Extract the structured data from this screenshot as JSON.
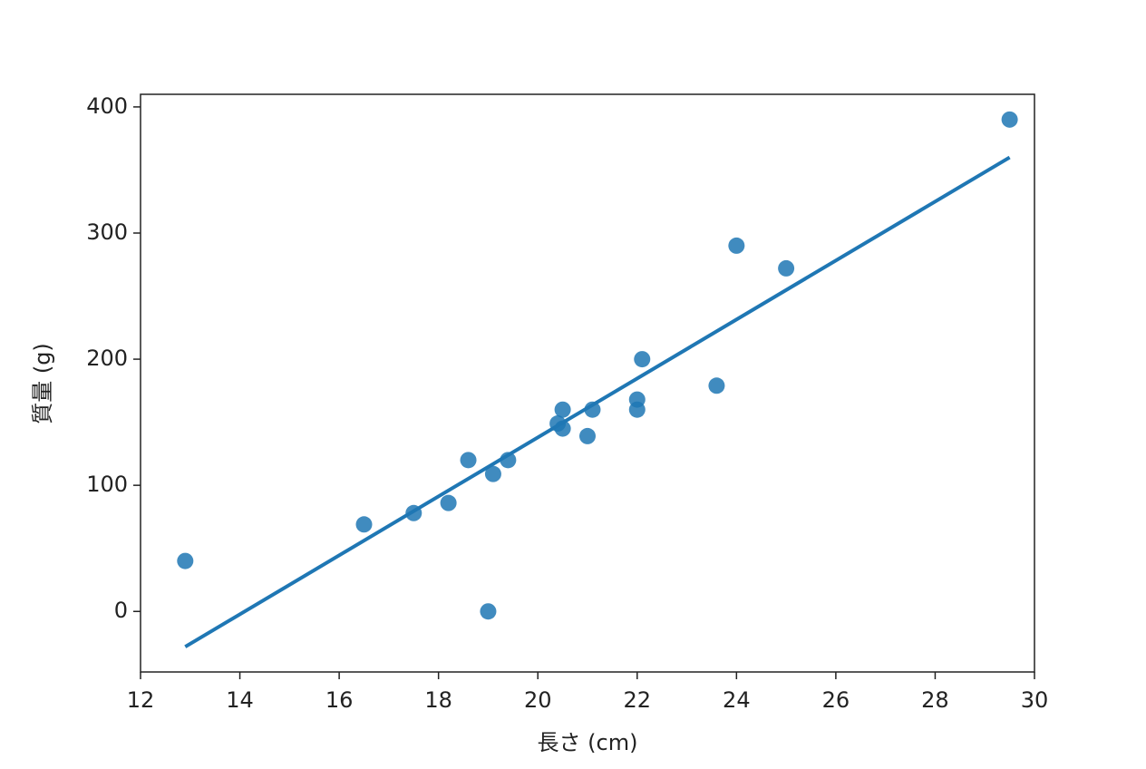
{
  "chart_data": {
    "type": "scatter",
    "x_label": "長さ (cm)",
    "y_label": "質量 (g)",
    "x": [
      12.9,
      16.5,
      17.5,
      18.2,
      18.6,
      19.1,
      19.0,
      19.4,
      20.4,
      20.5,
      20.5,
      21.0,
      21.1,
      22.0,
      22.0,
      22.1,
      23.6,
      24.0,
      25.0,
      29.5
    ],
    "values": [
      40,
      69,
      78,
      86,
      120,
      109,
      0,
      120,
      149,
      160,
      145,
      139,
      160,
      168,
      160,
      200,
      179,
      290,
      272,
      390
    ],
    "color": "#1f77b4",
    "line": {
      "x": [
        12.9,
        29.5
      ],
      "y": [
        -28,
        360
      ],
      "color": "#1f77b4"
    },
    "xlim": [
      12,
      30
    ],
    "xticks": [
      12,
      14,
      16,
      18,
      20,
      22,
      24,
      26,
      28,
      30
    ],
    "ylim": [
      -48,
      410
    ],
    "yticks": [
      0,
      100,
      200,
      300,
      400
    ]
  }
}
